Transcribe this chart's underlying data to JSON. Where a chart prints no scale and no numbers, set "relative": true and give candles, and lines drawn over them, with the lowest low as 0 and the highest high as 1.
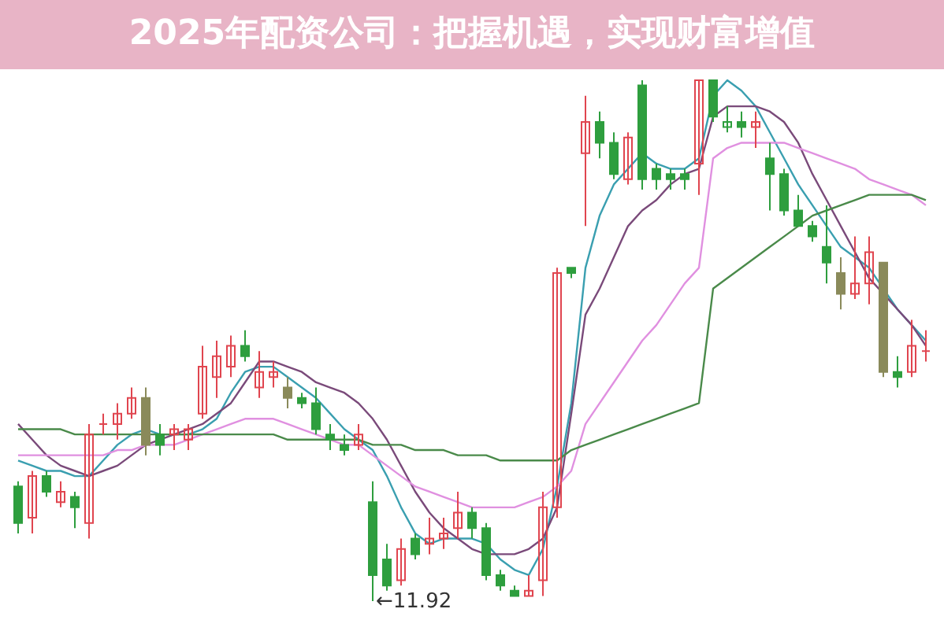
{
  "chart_data": {
    "type": "candlestick",
    "title": "2025年配资公司：把握机遇，实现财富增值",
    "relative": true,
    "categories": [
      null,
      null,
      null,
      null,
      null,
      null,
      null,
      null,
      null,
      null,
      null,
      null,
      null,
      null,
      null,
      null,
      null,
      null,
      null,
      null,
      null,
      null,
      null,
      null,
      null,
      null,
      null,
      null,
      null,
      null,
      null,
      null,
      null,
      null,
      null,
      null,
      null,
      null,
      null,
      null,
      null,
      null,
      null,
      null,
      null,
      null,
      null,
      null,
      null,
      null,
      null,
      null,
      null,
      null,
      null,
      null,
      null,
      null,
      null,
      null,
      null,
      null,
      null,
      null,
      null
    ],
    "ohlc": [
      [
        0.22,
        0.23,
        0.13,
        0.15
      ],
      [
        0.16,
        0.25,
        0.13,
        0.24
      ],
      [
        0.24,
        0.25,
        0.2,
        0.21
      ],
      [
        0.19,
        0.23,
        0.18,
        0.21
      ],
      [
        0.2,
        0.21,
        0.14,
        0.18
      ],
      [
        0.15,
        0.34,
        0.12,
        0.32
      ],
      [
        0.34,
        0.36,
        0.32,
        0.34
      ],
      [
        0.34,
        0.38,
        0.31,
        0.36
      ],
      [
        0.36,
        0.41,
        0.35,
        0.39
      ],
      [
        0.39,
        0.41,
        0.28,
        0.3
      ],
      [
        0.32,
        0.34,
        0.28,
        0.3
      ],
      [
        0.32,
        0.34,
        0.29,
        0.33
      ],
      [
        0.31,
        0.34,
        0.29,
        0.33
      ],
      [
        0.36,
        0.49,
        0.35,
        0.45
      ],
      [
        0.43,
        0.5,
        0.39,
        0.47
      ],
      [
        0.45,
        0.51,
        0.43,
        0.49
      ],
      [
        0.49,
        0.52,
        0.46,
        0.47
      ],
      [
        0.41,
        0.48,
        0.39,
        0.44
      ],
      [
        0.43,
        0.46,
        0.41,
        0.44
      ],
      [
        0.41,
        0.43,
        0.37,
        0.39
      ],
      [
        0.39,
        0.4,
        0.37,
        0.38
      ],
      [
        0.38,
        0.41,
        0.32,
        0.33
      ],
      [
        0.32,
        0.34,
        0.29,
        0.31
      ],
      [
        0.3,
        0.32,
        0.28,
        0.29
      ],
      [
        0.3,
        0.34,
        0.29,
        0.32
      ],
      [
        0.19,
        0.23,
        0,
        0.05
      ],
      [
        0.08,
        0.11,
        0.02,
        0.03
      ],
      [
        0.04,
        0.12,
        0.03,
        0.1
      ],
      [
        0.12,
        0.13,
        0.08,
        0.09
      ],
      [
        0.11,
        0.16,
        0.09,
        0.12
      ],
      [
        0.12,
        0.16,
        0.1,
        0.13
      ],
      [
        0.14,
        0.21,
        0.12,
        0.17
      ],
      [
        0.17,
        0.18,
        0.12,
        0.14
      ],
      [
        0.14,
        0.15,
        0.04,
        0.05
      ],
      [
        0.05,
        0.06,
        0.02,
        0.03
      ],
      [
        0.02,
        0.03,
        0.01,
        0.01
      ],
      [
        0.01,
        0.05,
        0.01,
        0.02
      ],
      [
        0.04,
        0.21,
        0.01,
        0.18
      ],
      [
        0.18,
        0.64,
        0.16,
        0.63
      ],
      [
        0.64,
        0.64,
        0.62,
        0.63
      ],
      [
        0.86,
        0.97,
        0.72,
        0.92
      ],
      [
        0.92,
        0.94,
        0.85,
        0.88
      ],
      [
        0.88,
        0.9,
        0.81,
        0.82
      ],
      [
        0.81,
        0.9,
        0.8,
        0.89
      ],
      [
        0.99,
        1,
        0.79,
        0.81
      ],
      [
        0.83,
        0.84,
        0.79,
        0.81
      ],
      [
        0.82,
        0.83,
        0.79,
        0.81
      ],
      [
        0.82,
        0.83,
        0.79,
        0.81
      ],
      [
        0.84,
        1,
        0.78,
        1
      ],
      [
        1,
        1,
        0.92,
        0.93
      ],
      [
        0.91,
        0.95,
        0.9,
        0.92
      ],
      [
        0.92,
        0.94,
        0.89,
        0.91
      ],
      [
        0.91,
        0.94,
        0.87,
        0.92
      ],
      [
        0.85,
        0.88,
        0.75,
        0.82
      ],
      [
        0.82,
        0.83,
        0.74,
        0.75
      ],
      [
        0.75,
        0.78,
        0.72,
        0.72
      ],
      [
        0.72,
        0.73,
        0.69,
        0.7
      ],
      [
        0.68,
        0.76,
        0.61,
        0.65
      ],
      [
        0.63,
        0.66,
        0.56,
        0.59
      ],
      [
        0.59,
        0.7,
        0.58,
        0.61
      ],
      [
        0.61,
        0.7,
        0.57,
        0.67
      ],
      [
        0.65,
        0.65,
        0.43,
        0.44
      ],
      [
        0.44,
        0.47,
        0.41,
        0.43
      ],
      [
        0.44,
        0.54,
        0.43,
        0.49
      ],
      [
        0.48,
        0.52,
        0.46,
        0.48
      ]
    ],
    "colors": [
      "#2e9e3e",
      "#e0454f",
      "#2e9e3e",
      "#e0454f",
      "#2e9e3e",
      "#e0454f",
      "#e0454f",
      "#e0454f",
      "#e0454f",
      "#8a8a5a",
      "#2e9e3e",
      "#e0454f",
      "#e0454f",
      "#e0454f",
      "#e0454f",
      "#e0454f",
      "#2e9e3e",
      "#e0454f",
      "#e0454f",
      "#8a8a5a",
      "#2e9e3e",
      "#2e9e3e",
      "#2e9e3e",
      "#2e9e3e",
      "#e0454f",
      "#2e9e3e",
      "#2e9e3e",
      "#e0454f",
      "#2e9e3e",
      "#e0454f",
      "#e0454f",
      "#e0454f",
      "#2e9e3e",
      "#2e9e3e",
      "#2e9e3e",
      "#2e9e3e",
      "#e0454f",
      "#e0454f",
      "#e0454f",
      "#2e9e3e",
      "#e0454f",
      "#2e9e3e",
      "#2e9e3e",
      "#e0454f",
      "#2e9e3e",
      "#2e9e3e",
      "#2e9e3e",
      "#2e9e3e",
      "#e0454f",
      "#2e9e3e",
      "#2e9e3e",
      "#2e9e3e",
      "#e0454f",
      "#2e9e3e",
      "#2e9e3e",
      "#2e9e3e",
      "#2e9e3e",
      "#2e9e3e",
      "#8a8a5a",
      "#e0454f",
      "#e0454f",
      "#8a8a5a",
      "#2e9e3e",
      "#e0454f",
      "#e0454f"
    ],
    "series": [
      {
        "type": "line",
        "color": "#3a9fb0",
        "values": [
          0.27,
          0.26,
          0.25,
          0.25,
          0.24,
          0.24,
          0.27,
          0.3,
          0.32,
          0.33,
          0.32,
          0.32,
          0.32,
          0.33,
          0.35,
          0.4,
          0.44,
          0.45,
          0.45,
          0.43,
          0.41,
          0.39,
          0.36,
          0.33,
          0.31,
          0.29,
          0.24,
          0.18,
          0.13,
          0.11,
          0.12,
          0.12,
          0.12,
          0.11,
          0.08,
          0.06,
          0.05,
          0.1,
          0.22,
          0.38,
          0.64,
          0.74,
          0.8,
          0.83,
          0.86,
          0.84,
          0.83,
          0.83,
          0.85,
          0.97,
          1,
          0.98,
          0.95,
          0.9,
          0.85,
          0.8,
          0.76,
          0.72,
          0.68,
          0.66,
          0.64,
          0.6,
          0.56,
          0.53,
          0.5
        ]
      },
      {
        "type": "line",
        "color": "#7a4a7a",
        "values": [
          0.34,
          0.31,
          0.28,
          0.26,
          0.25,
          0.24,
          0.25,
          0.26,
          0.28,
          0.3,
          0.31,
          0.32,
          0.33,
          0.34,
          0.36,
          0.38,
          0.42,
          0.46,
          0.46,
          0.45,
          0.44,
          0.42,
          0.41,
          0.4,
          0.38,
          0.35,
          0.31,
          0.26,
          0.21,
          0.17,
          0.14,
          0.12,
          0.1,
          0.09,
          0.09,
          0.09,
          0.1,
          0.12,
          0.18,
          0.36,
          0.55,
          0.6,
          0.66,
          0.72,
          0.75,
          0.77,
          0.8,
          0.82,
          0.83,
          0.93,
          0.95,
          0.95,
          0.95,
          0.94,
          0.92,
          0.88,
          0.82,
          0.77,
          0.72,
          0.67,
          0.62,
          0.59,
          0.56,
          0.53,
          0.49
        ]
      },
      {
        "type": "line",
        "color": "#e090e0",
        "values": [
          0.28,
          0.28,
          0.28,
          0.28,
          0.28,
          0.28,
          0.28,
          0.29,
          0.29,
          0.3,
          0.3,
          0.3,
          0.31,
          0.32,
          0.33,
          0.34,
          0.35,
          0.35,
          0.35,
          0.34,
          0.33,
          0.32,
          0.31,
          0.3,
          0.3,
          0.28,
          0.26,
          0.24,
          0.22,
          0.21,
          0.2,
          0.19,
          0.18,
          0.18,
          0.18,
          0.18,
          0.19,
          0.2,
          0.22,
          0.25,
          0.34,
          0.38,
          0.42,
          0.46,
          0.5,
          0.53,
          0.57,
          0.61,
          0.64,
          0.85,
          0.87,
          0.88,
          0.88,
          0.88,
          0.88,
          0.87,
          0.86,
          0.85,
          0.84,
          0.83,
          0.81,
          0.8,
          0.79,
          0.78,
          0.76
        ]
      },
      {
        "type": "line",
        "color": "#4a8a4a",
        "values": [
          0.33,
          0.33,
          0.33,
          0.33,
          0.32,
          0.32,
          0.32,
          0.32,
          0.32,
          0.32,
          0.32,
          0.32,
          0.32,
          0.32,
          0.32,
          0.32,
          0.32,
          0.32,
          0.32,
          0.31,
          0.31,
          0.31,
          0.31,
          0.31,
          0.31,
          0.3,
          0.3,
          0.3,
          0.29,
          0.29,
          0.29,
          0.28,
          0.28,
          0.28,
          0.27,
          0.27,
          0.27,
          0.27,
          0.27,
          0.29,
          0.3,
          0.31,
          0.32,
          0.33,
          0.34,
          0.35,
          0.36,
          0.37,
          0.38,
          0.6,
          0.62,
          0.64,
          0.66,
          0.68,
          0.7,
          0.72,
          0.74,
          0.75,
          0.76,
          0.77,
          0.78,
          0.78,
          0.78,
          0.78,
          0.77
        ]
      }
    ],
    "annotations": [
      "←11.92"
    ]
  }
}
